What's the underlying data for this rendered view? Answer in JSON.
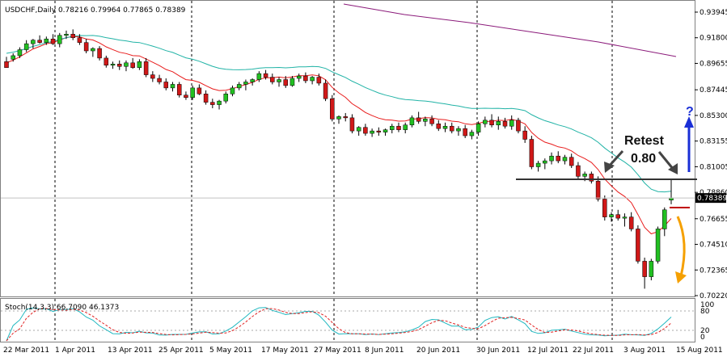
{
  "chart_header": "USDCHF,Daily  0.78216 0.79964 0.77865 0.78389",
  "stoch_header": "Stoch(14,3,3) 66.7090 46.1373",
  "annotation": {
    "line1": "Retest",
    "line2": "0.80",
    "question": "?"
  },
  "colors": {
    "bull": "#22c022",
    "bear": "#d01818",
    "ma_fast": "#e81c1c",
    "ma_mid": "#21b3a6",
    "ma_slow": "#8b1a7a",
    "stoch_main": "#20b8c0",
    "stoch_signal": "#e02020",
    "arrow_up": "#1a2fd6",
    "arrow_down": "#f5a000",
    "level": "#333333"
  },
  "chart_data": {
    "type": "candlestick",
    "symbol": "USDCHF",
    "timeframe": "Daily",
    "ohlc_last": {
      "open": 0.78216,
      "high": 0.79964,
      "low": 0.77865,
      "close": 0.78389
    },
    "current_price_label": "0.78389",
    "y_ticks": [
      "0.93945",
      "0.91800",
      "0.89655",
      "0.87445",
      "0.85300",
      "0.83155",
      "0.81005",
      "0.78860",
      "0.76655",
      "0.74510",
      "0.72365",
      "0.70220"
    ],
    "ylim": [
      0.7022,
      0.93945
    ],
    "x_ticks": [
      "22 Mar 2011",
      "1 Apr 2011",
      "13 Apr 2011",
      "25 Apr 2011",
      "5 May 2011",
      "17 May 2011",
      "27 May 2011",
      "8 Jun 2011",
      "20 Jun 2011",
      "30 Jun 2011",
      "12 Jul 2011",
      "22 Jul 2011",
      "3 Aug 2011",
      "15 Aug 2011"
    ],
    "candles": [
      [
        0.898,
        0.902,
        0.894,
        0.893
      ],
      [
        0.9,
        0.905,
        0.898,
        0.903
      ],
      [
        0.903,
        0.91,
        0.901,
        0.908
      ],
      [
        0.908,
        0.916,
        0.906,
        0.913
      ],
      [
        0.913,
        0.917,
        0.909,
        0.916
      ],
      [
        0.916,
        0.92,
        0.913,
        0.914
      ],
      [
        0.914,
        0.919,
        0.912,
        0.917
      ],
      [
        0.917,
        0.921,
        0.912,
        0.913
      ],
      [
        0.913,
        0.922,
        0.91,
        0.92
      ],
      [
        0.92,
        0.924,
        0.917,
        0.921
      ],
      [
        0.921,
        0.925,
        0.916,
        0.918
      ],
      [
        0.918,
        0.921,
        0.912,
        0.914
      ],
      [
        0.914,
        0.917,
        0.905,
        0.907
      ],
      [
        0.907,
        0.91,
        0.902,
        0.909
      ],
      [
        0.909,
        0.911,
        0.899,
        0.901
      ],
      [
        0.901,
        0.903,
        0.893,
        0.895
      ],
      [
        0.895,
        0.898,
        0.892,
        0.896
      ],
      [
        0.896,
        0.899,
        0.891,
        0.894
      ],
      [
        0.894,
        0.899,
        0.89,
        0.897
      ],
      [
        0.897,
        0.901,
        0.892,
        0.893
      ],
      [
        0.893,
        0.9,
        0.891,
        0.898
      ],
      [
        0.898,
        0.901,
        0.885,
        0.887
      ],
      [
        0.887,
        0.89,
        0.881,
        0.884
      ],
      [
        0.884,
        0.887,
        0.879,
        0.881
      ],
      [
        0.881,
        0.884,
        0.874,
        0.876
      ],
      [
        0.876,
        0.881,
        0.873,
        0.879
      ],
      [
        0.879,
        0.881,
        0.868,
        0.87
      ],
      [
        0.87,
        0.873,
        0.866,
        0.868
      ],
      [
        0.868,
        0.878,
        0.866,
        0.876
      ],
      [
        0.876,
        0.879,
        0.87,
        0.871
      ],
      [
        0.871,
        0.874,
        0.862,
        0.864
      ],
      [
        0.864,
        0.867,
        0.859,
        0.862
      ],
      [
        0.862,
        0.866,
        0.858,
        0.865
      ],
      [
        0.865,
        0.873,
        0.863,
        0.871
      ],
      [
        0.871,
        0.878,
        0.869,
        0.876
      ],
      [
        0.876,
        0.881,
        0.874,
        0.879
      ],
      [
        0.879,
        0.883,
        0.874,
        0.881
      ],
      [
        0.881,
        0.884,
        0.878,
        0.883
      ],
      [
        0.883,
        0.89,
        0.881,
        0.888
      ],
      [
        0.888,
        0.891,
        0.883,
        0.885
      ],
      [
        0.885,
        0.888,
        0.879,
        0.881
      ],
      [
        0.881,
        0.885,
        0.877,
        0.883
      ],
      [
        0.883,
        0.886,
        0.876,
        0.878
      ],
      [
        0.878,
        0.886,
        0.877,
        0.884
      ],
      [
        0.884,
        0.888,
        0.881,
        0.886
      ],
      [
        0.886,
        0.889,
        0.88,
        0.882
      ],
      [
        0.882,
        0.886,
        0.879,
        0.885
      ],
      [
        0.885,
        0.888,
        0.878,
        0.88
      ],
      [
        0.88,
        0.883,
        0.865,
        0.867
      ],
      [
        0.867,
        0.87,
        0.848,
        0.85
      ],
      [
        0.85,
        0.853,
        0.846,
        0.852
      ],
      [
        0.852,
        0.855,
        0.848,
        0.851
      ],
      [
        0.851,
        0.854,
        0.838,
        0.84
      ],
      [
        0.84,
        0.844,
        0.836,
        0.843
      ],
      [
        0.843,
        0.846,
        0.836,
        0.838
      ],
      [
        0.838,
        0.842,
        0.835,
        0.84
      ],
      [
        0.84,
        0.843,
        0.836,
        0.839
      ],
      [
        0.839,
        0.842,
        0.836,
        0.841
      ],
      [
        0.841,
        0.846,
        0.838,
        0.844
      ],
      [
        0.844,
        0.847,
        0.839,
        0.841
      ],
      [
        0.841,
        0.847,
        0.838,
        0.845
      ],
      [
        0.845,
        0.853,
        0.843,
        0.851
      ],
      [
        0.851,
        0.856,
        0.846,
        0.848
      ],
      [
        0.848,
        0.852,
        0.844,
        0.85
      ],
      [
        0.85,
        0.853,
        0.844,
        0.846
      ],
      [
        0.846,
        0.849,
        0.84,
        0.842
      ],
      [
        0.842,
        0.847,
        0.839,
        0.844
      ],
      [
        0.844,
        0.847,
        0.838,
        0.84
      ],
      [
        0.84,
        0.844,
        0.836,
        0.842
      ],
      [
        0.842,
        0.845,
        0.834,
        0.836
      ],
      [
        0.836,
        0.841,
        0.833,
        0.839
      ],
      [
        0.839,
        0.848,
        0.836,
        0.846
      ],
      [
        0.846,
        0.852,
        0.843,
        0.849
      ],
      [
        0.849,
        0.854,
        0.843,
        0.845
      ],
      [
        0.845,
        0.852,
        0.841,
        0.848
      ],
      [
        0.848,
        0.851,
        0.842,
        0.844
      ],
      [
        0.844,
        0.853,
        0.841,
        0.849
      ],
      [
        0.849,
        0.851,
        0.838,
        0.84
      ],
      [
        0.84,
        0.844,
        0.83,
        0.833
      ],
      [
        0.833,
        0.836,
        0.808,
        0.81
      ],
      [
        0.81,
        0.815,
        0.806,
        0.813
      ],
      [
        0.813,
        0.817,
        0.808,
        0.815
      ],
      [
        0.815,
        0.822,
        0.812,
        0.819
      ],
      [
        0.819,
        0.823,
        0.813,
        0.815
      ],
      [
        0.815,
        0.82,
        0.812,
        0.818
      ],
      [
        0.818,
        0.821,
        0.809,
        0.811
      ],
      [
        0.811,
        0.814,
        0.8,
        0.802
      ],
      [
        0.802,
        0.806,
        0.798,
        0.804
      ],
      [
        0.804,
        0.806,
        0.796,
        0.798
      ],
      [
        0.798,
        0.802,
        0.781,
        0.783
      ],
      [
        0.783,
        0.786,
        0.765,
        0.768
      ],
      [
        0.768,
        0.772,
        0.764,
        0.77
      ],
      [
        0.77,
        0.774,
        0.765,
        0.767
      ],
      [
        0.767,
        0.771,
        0.76,
        0.768
      ],
      [
        0.768,
        0.772,
        0.756,
        0.758
      ],
      [
        0.758,
        0.761,
        0.729,
        0.731
      ],
      [
        0.731,
        0.734,
        0.708,
        0.718
      ],
      [
        0.718,
        0.733,
        0.715,
        0.731
      ],
      [
        0.731,
        0.76,
        0.729,
        0.758
      ],
      [
        0.758,
        0.776,
        0.752,
        0.774
      ],
      [
        0.78216,
        0.79964,
        0.77865,
        0.78389
      ]
    ],
    "stoch_levels": [
      20,
      80
    ],
    "stoch_axis_labels": [
      "100",
      "80",
      "20",
      "0"
    ]
  }
}
